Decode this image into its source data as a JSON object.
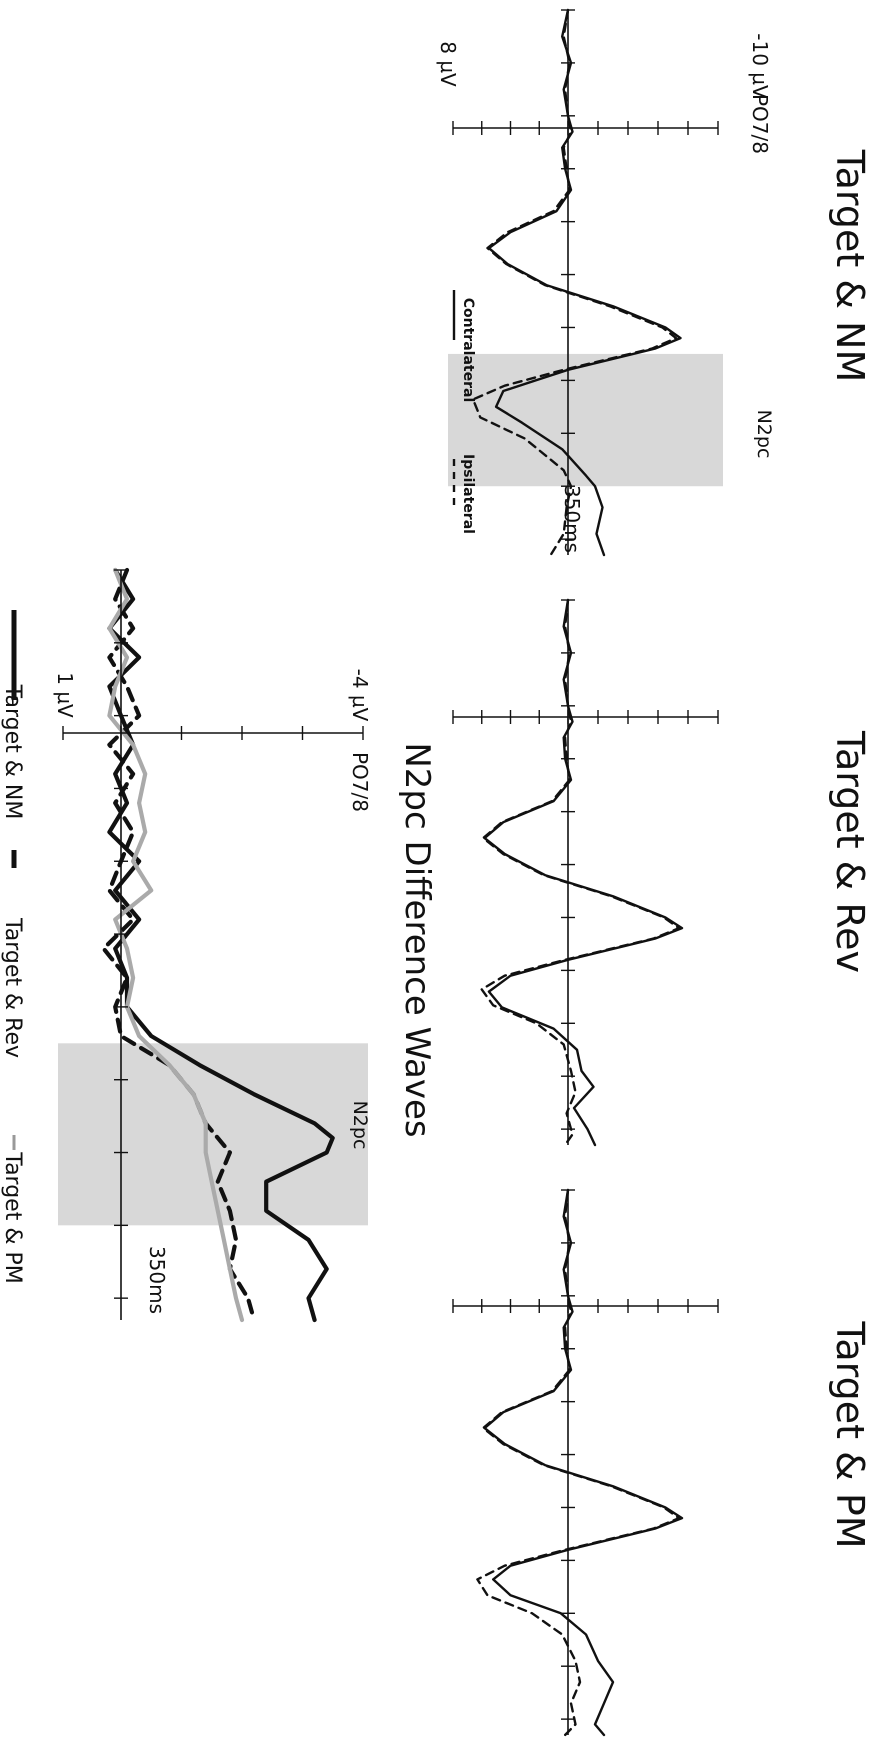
{
  "chart_data": [
    {
      "type": "line",
      "title": "Target & NM",
      "channel_label": "PO7/8",
      "y_top_label": "-10 µV",
      "y_bottom_label": "8 µV",
      "time_marker_label": "350ms",
      "window_label": "N2pc",
      "window": [
        225,
        350
      ],
      "x_range": [
        -100,
        415
      ],
      "y_range": [
        -10,
        8
      ],
      "legend": [
        "Contralateral",
        "Ipsilateral"
      ],
      "series": [
        {
          "name": "Contralateral",
          "style": "solid",
          "color": "#111111",
          "points": [
            [
              -100,
              0
            ],
            [
              -75,
              0.4
            ],
            [
              -50,
              -0.2
            ],
            [
              -25,
              0.3
            ],
            [
              0,
              0
            ],
            [
              15,
              -0.3
            ],
            [
              30,
              0.4
            ],
            [
              50,
              0.2
            ],
            [
              70,
              -0.2
            ],
            [
              90,
              0.8
            ],
            [
              110,
              4.0
            ],
            [
              125,
              5.5
            ],
            [
              140,
              4.2
            ],
            [
              160,
              1.5
            ],
            [
              180,
              -3.0
            ],
            [
              200,
              -6.5
            ],
            [
              210,
              -7.5
            ],
            [
              220,
              -5.8
            ],
            [
              240,
              0
            ],
            [
              260,
              4.5
            ],
            [
              275,
              5.0
            ],
            [
              290,
              3.2
            ],
            [
              315,
              0.4
            ],
            [
              340,
              -1.2
            ],
            [
              350,
              -1.8
            ],
            [
              370,
              -2.3
            ],
            [
              395,
              -1.9
            ],
            [
              415,
              -2.4
            ]
          ]
        },
        {
          "name": "Ipsilateral",
          "style": "dashed",
          "color": "#111111",
          "points": [
            [
              -100,
              0
            ],
            [
              -75,
              0.3
            ],
            [
              -50,
              -0.1
            ],
            [
              -25,
              0.2
            ],
            [
              0,
              0
            ],
            [
              15,
              -0.2
            ],
            [
              30,
              0.3
            ],
            [
              50,
              0.1
            ],
            [
              70,
              -0.1
            ],
            [
              90,
              1.0
            ],
            [
              110,
              4.2
            ],
            [
              125,
              5.6
            ],
            [
              140,
              4.3
            ],
            [
              160,
              1.6
            ],
            [
              180,
              -2.8
            ],
            [
              200,
              -6.3
            ],
            [
              210,
              -7.2
            ],
            [
              220,
              -5.6
            ],
            [
              240,
              0.3
            ],
            [
              255,
              4.4
            ],
            [
              268,
              6.6
            ],
            [
              285,
              6.1
            ],
            [
              305,
              3.0
            ],
            [
              335,
              0.3
            ],
            [
              350,
              -0.2
            ],
            [
              370,
              0.1
            ],
            [
              395,
              0.3
            ],
            [
              415,
              1.2
            ]
          ]
        }
      ]
    },
    {
      "type": "line",
      "title": "Target & Rev",
      "x_range": [
        -100,
        415
      ],
      "y_range": [
        -10,
        8
      ],
      "series": [
        {
          "name": "Contralateral",
          "style": "solid",
          "color": "#111111",
          "points": [
            [
              -100,
              0
            ],
            [
              -75,
              0.3
            ],
            [
              -50,
              -0.2
            ],
            [
              -25,
              0.3
            ],
            [
              0,
              0
            ],
            [
              15,
              -0.3
            ],
            [
              30,
              0.3
            ],
            [
              50,
              0.2
            ],
            [
              70,
              -0.2
            ],
            [
              90,
              1.0
            ],
            [
              110,
              4.5
            ],
            [
              125,
              5.8
            ],
            [
              140,
              4.4
            ],
            [
              160,
              1.6
            ],
            [
              180,
              -3.0
            ],
            [
              200,
              -6.5
            ],
            [
              210,
              -7.6
            ],
            [
              220,
              -5.8
            ],
            [
              240,
              0
            ],
            [
              255,
              4.0
            ],
            [
              270,
              5.5
            ],
            [
              285,
              4.6
            ],
            [
              305,
              1.0
            ],
            [
              325,
              -0.6
            ],
            [
              345,
              -0.9
            ],
            [
              360,
              -1.7
            ],
            [
              380,
              -0.4
            ],
            [
              400,
              -1.3
            ],
            [
              415,
              -1.8
            ]
          ]
        },
        {
          "name": "Ipsilateral",
          "style": "dashed",
          "color": "#111111",
          "points": [
            [
              -100,
              0
            ],
            [
              -75,
              0.2
            ],
            [
              -50,
              -0.1
            ],
            [
              -25,
              0.2
            ],
            [
              0,
              0
            ],
            [
              15,
              -0.2
            ],
            [
              30,
              0.2
            ],
            [
              50,
              0.1
            ],
            [
              70,
              -0.1
            ],
            [
              90,
              1.1
            ],
            [
              110,
              4.6
            ],
            [
              125,
              5.9
            ],
            [
              140,
              4.5
            ],
            [
              160,
              1.7
            ],
            [
              180,
              -2.9
            ],
            [
              200,
              -6.4
            ],
            [
              210,
              -7.4
            ],
            [
              220,
              -5.7
            ],
            [
              240,
              0.2
            ],
            [
              255,
              4.4
            ],
            [
              268,
              6.0
            ],
            [
              283,
              5.2
            ],
            [
              300,
              2.2
            ],
            [
              320,
              0.3
            ],
            [
              345,
              -0.2
            ],
            [
              365,
              -0.5
            ],
            [
              385,
              0.1
            ],
            [
              405,
              -0.3
            ],
            [
              415,
              0.2
            ]
          ]
        }
      ]
    },
    {
      "type": "line",
      "title": "Target & PM",
      "x_range": [
        -100,
        415
      ],
      "y_range": [
        -10,
        8
      ],
      "series": [
        {
          "name": "Contralateral",
          "style": "solid",
          "color": "#111111",
          "points": [
            [
              -100,
              0
            ],
            [
              -75,
              0.3
            ],
            [
              -50,
              -0.2
            ],
            [
              -25,
              0.3
            ],
            [
              0,
              0
            ],
            [
              15,
              -0.3
            ],
            [
              30,
              0.3
            ],
            [
              50,
              0.2
            ],
            [
              70,
              -0.2
            ],
            [
              90,
              1.0
            ],
            [
              110,
              4.5
            ],
            [
              125,
              5.8
            ],
            [
              140,
              4.4
            ],
            [
              160,
              1.6
            ],
            [
              180,
              -3.0
            ],
            [
              200,
              -6.5
            ],
            [
              210,
              -7.6
            ],
            [
              220,
              -5.8
            ],
            [
              240,
              0
            ],
            [
              255,
              4.0
            ],
            [
              268,
              5.2
            ],
            [
              283,
              4.0
            ],
            [
              300,
              0.5
            ],
            [
              320,
              -1.2
            ],
            [
              345,
              -2.0
            ],
            [
              365,
              -3.0
            ],
            [
              385,
              -2.4
            ],
            [
              405,
              -1.8
            ],
            [
              415,
              -2.4
            ]
          ]
        },
        {
          "name": "Ipsilateral",
          "style": "dashed",
          "color": "#111111",
          "points": [
            [
              -100,
              0
            ],
            [
              -75,
              0.2
            ],
            [
              -50,
              -0.1
            ],
            [
              -25,
              0.2
            ],
            [
              0,
              0
            ],
            [
              15,
              -0.2
            ],
            [
              30,
              0.2
            ],
            [
              50,
              0.1
            ],
            [
              70,
              -0.1
            ],
            [
              90,
              1.1
            ],
            [
              110,
              4.6
            ],
            [
              125,
              5.9
            ],
            [
              140,
              4.5
            ],
            [
              160,
              1.7
            ],
            [
              180,
              -2.9
            ],
            [
              200,
              -6.4
            ],
            [
              210,
              -7.4
            ],
            [
              220,
              -5.7
            ],
            [
              240,
              0.2
            ],
            [
              255,
              4.4
            ],
            [
              268,
              6.3
            ],
            [
              283,
              5.6
            ],
            [
              300,
              2.5
            ],
            [
              320,
              0.4
            ],
            [
              345,
              -0.5
            ],
            [
              365,
              -0.8
            ],
            [
              385,
              -0.2
            ],
            [
              405,
              -0.5
            ],
            [
              415,
              0.2
            ]
          ]
        }
      ]
    },
    {
      "type": "line",
      "title": "N2pc Difference Waves",
      "channel_label": "PO7/8",
      "y_top_label": "-4 µV",
      "y_bottom_label": "1 µV",
      "time_marker_label": "350ms",
      "window_label": "N2pc",
      "window": [
        225,
        350
      ],
      "x_range": [
        -100,
        415
      ],
      "y_range": [
        -4,
        1
      ],
      "legend": [
        "Target & NM",
        "Target & Rev",
        "Target & PM"
      ],
      "series": [
        {
          "name": "Target & NM",
          "style": "solid",
          "color": "#111111",
          "points": [
            [
              -100,
              0.1
            ],
            [
              -80,
              -0.2
            ],
            [
              -60,
              0.2
            ],
            [
              -40,
              -0.3
            ],
            [
              -20,
              0.2
            ],
            [
              0,
              0
            ],
            [
              20,
              -0.2
            ],
            [
              40,
              0.1
            ],
            [
              60,
              -0.1
            ],
            [
              80,
              0.2
            ],
            [
              100,
              -0.3
            ],
            [
              120,
              0.1
            ],
            [
              140,
              -0.3
            ],
            [
              160,
              0.1
            ],
            [
              180,
              -0.1
            ],
            [
              200,
              -0.1
            ],
            [
              220,
              -0.5
            ],
            [
              240,
              -1.3
            ],
            [
              260,
              -2.2
            ],
            [
              280,
              -3.2
            ],
            [
              290,
              -3.5
            ],
            [
              300,
              -3.4
            ],
            [
              320,
              -2.4
            ],
            [
              340,
              -2.4
            ],
            [
              360,
              -3.1
            ],
            [
              380,
              -3.4
            ],
            [
              400,
              -3.1
            ],
            [
              415,
              -3.2
            ]
          ]
        },
        {
          "name": "Target & Rev",
          "style": "dashed",
          "color": "#111111",
          "points": [
            [
              -100,
              -0.1
            ],
            [
              -80,
              0.1
            ],
            [
              -60,
              -0.2
            ],
            [
              -40,
              0.2
            ],
            [
              -20,
              -0.1
            ],
            [
              0,
              -0.3
            ],
            [
              20,
              0.2
            ],
            [
              40,
              -0.2
            ],
            [
              60,
              0.1
            ],
            [
              80,
              -0.2
            ],
            [
              100,
              0
            ],
            [
              120,
              0.2
            ],
            [
              140,
              -0.2
            ],
            [
              160,
              0.3
            ],
            [
              180,
              -0.1
            ],
            [
              200,
              0.1
            ],
            [
              220,
              0
            ],
            [
              240,
              -0.8
            ],
            [
              260,
              -1.2
            ],
            [
              280,
              -1.4
            ],
            [
              300,
              -1.8
            ],
            [
              320,
              -1.6
            ],
            [
              340,
              -1.8
            ],
            [
              360,
              -1.9
            ],
            [
              380,
              -1.8
            ],
            [
              400,
              -2.1
            ],
            [
              415,
              -2.2
            ]
          ]
        },
        {
          "name": "Target & PM",
          "style": "solid",
          "color": "#aaaaaa",
          "points": [
            [
              -100,
              0.1
            ],
            [
              -80,
              -0.1
            ],
            [
              -60,
              0.2
            ],
            [
              -40,
              -0.1
            ],
            [
              -20,
              0.1
            ],
            [
              0,
              0.2
            ],
            [
              20,
              -0.2
            ],
            [
              40,
              -0.4
            ],
            [
              60,
              -0.3
            ],
            [
              80,
              -0.4
            ],
            [
              100,
              -0.2
            ],
            [
              120,
              -0.5
            ],
            [
              140,
              0.1
            ],
            [
              160,
              -0.1
            ],
            [
              180,
              -0.2
            ],
            [
              200,
              -0.1
            ],
            [
              220,
              -0.3
            ],
            [
              240,
              -0.8
            ],
            [
              260,
              -1.2
            ],
            [
              280,
              -1.4
            ],
            [
              300,
              -1.4
            ],
            [
              320,
              -1.5
            ],
            [
              340,
              -1.6
            ],
            [
              360,
              -1.7
            ],
            [
              380,
              -1.8
            ],
            [
              400,
              -1.9
            ],
            [
              415,
              -2.0
            ]
          ]
        }
      ]
    }
  ]
}
